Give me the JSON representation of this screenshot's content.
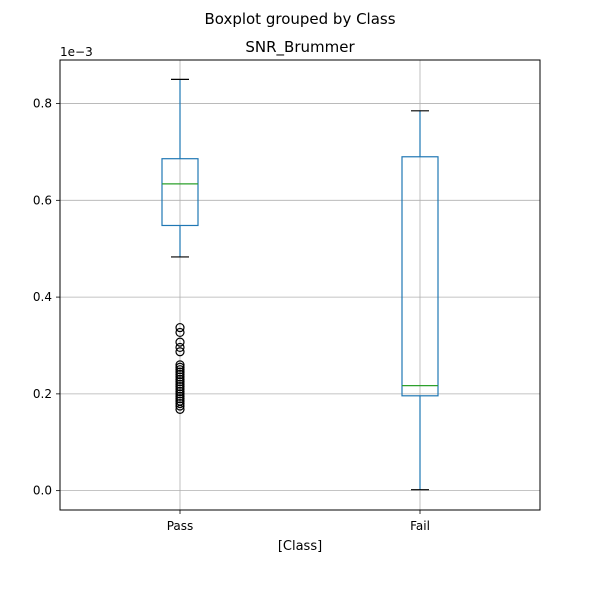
{
  "figure": {
    "suptitle": "Boxplot grouped by Class"
  },
  "chart_data": {
    "type": "box",
    "title": "SNR_Brummer",
    "xlabel": "[Class]",
    "ylabel": "",
    "y_offset_label": "1e−3",
    "y_scale_factor": 0.001,
    "ylim": [
      -0.04,
      0.89
    ],
    "yticks": [
      0.0,
      0.2,
      0.4,
      0.6,
      0.8
    ],
    "ytick_labels": [
      "0.0",
      "0.2",
      "0.4",
      "0.6",
      "0.8"
    ],
    "grid": true,
    "categories": [
      "Pass",
      "Fail"
    ],
    "boxes": [
      {
        "category": "Pass",
        "whisker_low": 0.483,
        "q1": 0.548,
        "median": 0.634,
        "q3": 0.686,
        "whisker_high": 0.85,
        "outliers": [
          0.337,
          0.327,
          0.307,
          0.296,
          0.287,
          0.26,
          0.255,
          0.25,
          0.245,
          0.24,
          0.235,
          0.23,
          0.225,
          0.22,
          0.215,
          0.21,
          0.205,
          0.2,
          0.195,
          0.19,
          0.185,
          0.18,
          0.175,
          0.168
        ]
      },
      {
        "category": "Fail",
        "whisker_low": 0.002,
        "q1": 0.196,
        "median": 0.217,
        "q3": 0.69,
        "whisker_high": 0.785,
        "outliers": []
      }
    ],
    "colors": {
      "box": "#1f77b4",
      "median": "#2ca02c",
      "whisker": "#1f77b4",
      "cap": "#000000",
      "flier": "#000000",
      "grid": "#b0b0b0"
    }
  }
}
